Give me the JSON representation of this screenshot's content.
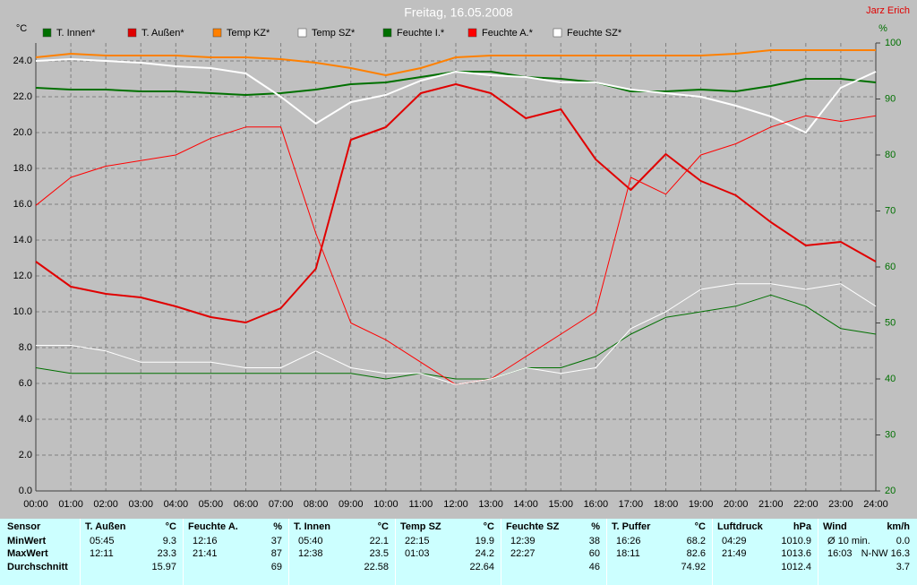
{
  "chart_data": {
    "type": "line",
    "title": "Freitag, 16.05.2008",
    "author": "Jarz Erich",
    "ylabel": "°C",
    "y2label": "%",
    "x": [
      0,
      1,
      2,
      3,
      4,
      5,
      6,
      7,
      8,
      9,
      10,
      11,
      12,
      13,
      14,
      15,
      16,
      17,
      18,
      19,
      20,
      21,
      22,
      23,
      24
    ],
    "xlim": [
      0,
      24
    ],
    "xticks": [
      {
        "value": 0,
        "label": "00:00"
      },
      {
        "value": 1,
        "label": "01:00"
      },
      {
        "value": 2,
        "label": "02:00"
      },
      {
        "value": 3,
        "label": "03:00"
      },
      {
        "value": 4,
        "label": "04:00"
      },
      {
        "value": 5,
        "label": "05:00"
      },
      {
        "value": 6,
        "label": "06:00"
      },
      {
        "value": 7,
        "label": "07:00"
      },
      {
        "value": 8,
        "label": "08:00"
      },
      {
        "value": 9,
        "label": "09:00"
      },
      {
        "value": 10,
        "label": "10:00"
      },
      {
        "value": 11,
        "label": "11:00"
      },
      {
        "value": 12,
        "label": "12:00"
      },
      {
        "value": 13,
        "label": "13:00"
      },
      {
        "value": 14,
        "label": "14:00"
      },
      {
        "value": 15,
        "label": "15:00"
      },
      {
        "value": 16,
        "label": "16:00"
      },
      {
        "value": 17,
        "label": "17:00"
      },
      {
        "value": 18,
        "label": "18:00"
      },
      {
        "value": 19,
        "label": "19:00"
      },
      {
        "value": 20,
        "label": "20:00"
      },
      {
        "value": 21,
        "label": "21:00"
      },
      {
        "value": 22,
        "label": "22:00"
      },
      {
        "value": 23,
        "label": "23:00"
      },
      {
        "value": 24,
        "label": "24:00"
      }
    ],
    "ylim": [
      0,
      25
    ],
    "yticks": [
      {
        "value": 0,
        "label": "0.0"
      },
      {
        "value": 2,
        "label": "2.0"
      },
      {
        "value": 4,
        "label": "4.0"
      },
      {
        "value": 6,
        "label": "6.0"
      },
      {
        "value": 8,
        "label": "8.0"
      },
      {
        "value": 10,
        "label": "10.0"
      },
      {
        "value": 12,
        "label": "12.0"
      },
      {
        "value": 14,
        "label": "14.0"
      },
      {
        "value": 16,
        "label": "16.0"
      },
      {
        "value": 18,
        "label": "18.0"
      },
      {
        "value": 20,
        "label": "20.0"
      },
      {
        "value": 22,
        "label": "22.0"
      },
      {
        "value": 24,
        "label": "24.0"
      }
    ],
    "y2lim": [
      20,
      100
    ],
    "y2ticks": [
      20,
      30,
      40,
      50,
      60,
      70,
      80,
      90,
      100
    ],
    "grid": true,
    "series": [
      {
        "name": "T. Innen*",
        "color": "#007000",
        "linewidth": 2,
        "values": [
          22.5,
          22.4,
          22.4,
          22.3,
          22.3,
          22.2,
          22.1,
          22.2,
          22.4,
          22.7,
          22.8,
          23.1,
          23.4,
          23.4,
          23.1,
          23.0,
          22.8,
          22.3,
          22.3,
          22.4,
          22.3,
          22.6,
          23.0,
          23.0,
          22.8
        ]
      },
      {
        "name": "T. Außen*",
        "color": "#e00000",
        "linewidth": 2,
        "values": [
          12.8,
          11.4,
          11.0,
          10.8,
          10.3,
          9.7,
          9.4,
          10.2,
          12.4,
          19.6,
          20.3,
          22.2,
          22.7,
          22.2,
          20.8,
          21.3,
          18.5,
          16.8,
          18.8,
          17.3,
          16.5,
          15.0,
          13.7,
          13.9,
          12.8
        ]
      },
      {
        "name": "Temp KZ*",
        "color": "#ff8000",
        "linewidth": 2,
        "values": [
          24.2,
          24.4,
          24.3,
          24.3,
          24.3,
          24.2,
          24.2,
          24.1,
          23.9,
          23.6,
          23.2,
          23.6,
          24.2,
          24.3,
          24.3,
          24.3,
          24.3,
          24.3,
          24.3,
          24.3,
          24.4,
          24.6,
          24.6,
          24.6,
          24.6
        ]
      },
      {
        "name": "Temp SZ*",
        "color": "#ffffff",
        "linewidth": 2,
        "values": [
          24.0,
          24.1,
          24.0,
          23.9,
          23.7,
          23.6,
          23.3,
          22.0,
          20.5,
          21.7,
          22.1,
          22.9,
          23.4,
          23.2,
          23.1,
          22.8,
          22.8,
          22.4,
          22.2,
          22.0,
          21.5,
          20.9,
          20.0,
          22.5,
          23.4
        ]
      },
      {
        "name": "Feuchte I.*",
        "color": "#007000",
        "linewidth": 1,
        "axis": "y2",
        "values": [
          42,
          41,
          41,
          41,
          41,
          41,
          41,
          41,
          41,
          41,
          40,
          41,
          40,
          40,
          42,
          42,
          44,
          48,
          51,
          52,
          53,
          55,
          53,
          49,
          48
        ]
      },
      {
        "name": "Feuchte A.*",
        "color": "#ff0000",
        "linewidth": 1,
        "axis": "y2",
        "values": [
          71,
          76,
          78,
          79,
          80,
          83,
          85,
          85,
          66,
          50,
          47,
          43,
          39,
          40,
          44,
          48,
          52,
          76,
          73,
          80,
          82,
          85,
          87,
          86,
          87
        ]
      },
      {
        "name": "Feuchte SZ*",
        "color": "#ffffff",
        "linewidth": 1,
        "axis": "y2",
        "values": [
          46,
          46,
          45,
          43,
          43,
          43,
          42,
          42,
          45,
          42,
          41,
          41,
          39,
          40,
          42,
          41,
          42,
          49,
          52,
          56,
          57,
          57,
          56,
          57,
          53
        ]
      }
    ]
  },
  "table": {
    "row_labels": [
      "Sensor",
      "MinWert",
      "MaxWert",
      "Durchschnitt"
    ],
    "groups": [
      {
        "name": "T. Außen",
        "unit": "°C",
        "min": [
          "05:45",
          "9.3"
        ],
        "max": [
          "12:11",
          "23.3"
        ],
        "avg": "15.97"
      },
      {
        "name": "Feuchte A.",
        "unit": "%",
        "min": [
          "12:16",
          "37"
        ],
        "max": [
          "21:41",
          "87"
        ],
        "avg": "69"
      },
      {
        "name": "T. Innen",
        "unit": "°C",
        "min": [
          "05:40",
          "22.1"
        ],
        "max": [
          "12:38",
          "23.5"
        ],
        "avg": "22.58"
      },
      {
        "name": "Temp SZ",
        "unit": "°C",
        "min": [
          "22:15",
          "19.9"
        ],
        "max": [
          "01:03",
          "24.2"
        ],
        "avg": "22.64"
      },
      {
        "name": "Feuchte SZ",
        "unit": "%",
        "min": [
          "12:39",
          "38"
        ],
        "max": [
          "22:27",
          "60"
        ],
        "avg": "46"
      },
      {
        "name": "T. Puffer",
        "unit": "°C",
        "min": [
          "16:26",
          "68.2"
        ],
        "max": [
          "18:11",
          "82.6"
        ],
        "avg": "74.92"
      },
      {
        "name": "Luftdruck",
        "unit": "hPa",
        "min": [
          "04:29",
          "1010.9"
        ],
        "max": [
          "21:49",
          "1013.6"
        ],
        "avg": "1012.4"
      },
      {
        "name": "Wind",
        "unit": "km/h",
        "min": [
          "Ø 10 min.",
          "0.0"
        ],
        "max": [
          "16:03",
          "N-NW 16.3"
        ],
        "avg": "3.7"
      }
    ]
  }
}
